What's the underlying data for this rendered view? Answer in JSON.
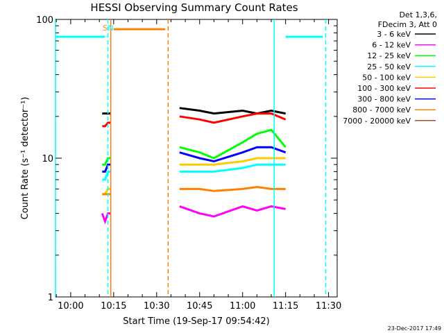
{
  "chart_data": {
    "type": "line",
    "title": "HESSI Observing Summary Count Rates",
    "xlabel": "Start Time (19-Sep-17 09:54:42)",
    "ylabel": "Count Rate (s⁻¹ detector⁻¹)",
    "x_scale": "time",
    "y_scale": "log",
    "xlim": [
      "09:54:42",
      "11:33:00"
    ],
    "ylim": [
      1,
      100
    ],
    "x_ticks": [
      "10:00",
      "10:15",
      "10:30",
      "10:45",
      "11:00",
      "11:15",
      "11:30"
    ],
    "y_ticks": [
      "1",
      "10",
      "100"
    ],
    "grid": false,
    "legend_placement": "top-right outside",
    "legend_header": [
      "Det 1,3,6,",
      "FDecim 3, Att 0"
    ],
    "series": [
      {
        "name": "3 - 6 keV",
        "color": "#000000",
        "segments": [
          {
            "x": [
              "10:11",
              "10:12",
              "10:13",
              "10:14"
            ],
            "y": [
              21,
              21,
              21,
              21
            ]
          },
          {
            "x": [
              "10:38",
              "10:45",
              "10:50",
              "11:00",
              "11:05",
              "11:10",
              "11:15"
            ],
            "y": [
              23,
              22,
              21,
              22,
              21,
              22,
              21
            ]
          }
        ]
      },
      {
        "name": "6 - 12 keV",
        "color": "#ff00ff",
        "segments": [
          {
            "x": [
              "10:11",
              "10:12",
              "10:13",
              "10:14"
            ],
            "y": [
              4,
              3.5,
              4,
              4
            ]
          },
          {
            "x": [
              "10:38",
              "10:45",
              "10:50",
              "11:00",
              "11:05",
              "11:10",
              "11:15"
            ],
            "y": [
              4.5,
              4,
              3.8,
              4.5,
              4.2,
              4.5,
              4.3
            ]
          }
        ]
      },
      {
        "name": "12 - 25 keV",
        "color": "#00ff00",
        "segments": [
          {
            "x": [
              "10:11",
              "10:12",
              "10:13",
              "10:14"
            ],
            "y": [
              9,
              9,
              10,
              10
            ]
          },
          {
            "x": [
              "10:38",
              "10:45",
              "10:50",
              "11:00",
              "11:05",
              "11:10",
              "11:15"
            ],
            "y": [
              12,
              11,
              10,
              13,
              15,
              16,
              12
            ]
          }
        ]
      },
      {
        "name": "25 - 50 keV",
        "color": "#00ffff",
        "segments": [
          {
            "x": [
              "10:11",
              "10:12",
              "10:13",
              "10:14"
            ],
            "y": [
              7,
              7,
              8,
              8
            ]
          },
          {
            "x": [
              "10:38",
              "10:45",
              "10:50",
              "11:00",
              "11:05",
              "11:10",
              "11:15"
            ],
            "y": [
              8,
              8,
              8,
              8.5,
              9,
              9,
              9
            ]
          }
        ]
      },
      {
        "name": "50 - 100 keV",
        "color": "#ffcc00",
        "segments": [
          {
            "x": [
              "10:11",
              "10:12",
              "10:13",
              "10:14"
            ],
            "y": [
              5.5,
              5.5,
              6,
              6
            ]
          },
          {
            "x": [
              "10:38",
              "10:45",
              "10:50",
              "11:00",
              "11:05",
              "11:10",
              "11:15"
            ],
            "y": [
              9,
              9,
              9,
              9.5,
              10,
              10,
              10
            ]
          }
        ]
      },
      {
        "name": "100 - 300 keV",
        "color": "#ff0000",
        "segments": [
          {
            "x": [
              "10:11",
              "10:12",
              "10:13",
              "10:14"
            ],
            "y": [
              17,
              17,
              18,
              18
            ]
          },
          {
            "x": [
              "10:38",
              "10:45",
              "10:50",
              "11:00",
              "11:05",
              "11:10",
              "11:15"
            ],
            "y": [
              20,
              19,
              18,
              20,
              21,
              21,
              19
            ]
          }
        ]
      },
      {
        "name": "300 - 800 keV",
        "color": "#0000ff",
        "segments": [
          {
            "x": [
              "10:11",
              "10:12",
              "10:13",
              "10:14"
            ],
            "y": [
              8,
              8,
              9,
              9
            ]
          },
          {
            "x": [
              "10:38",
              "10:45",
              "10:50",
              "11:00",
              "11:05",
              "11:10",
              "11:15"
            ],
            "y": [
              11,
              10,
              9.5,
              11,
              12,
              12,
              11
            ]
          }
        ]
      },
      {
        "name": "800 - 7000 keV",
        "color": "#ff8000",
        "segments": [
          {
            "x": [
              "10:11",
              "10:12",
              "10:13",
              "10:14"
            ],
            "y": [
              5.5,
              5.5,
              5.5,
              5.5
            ]
          },
          {
            "x": [
              "10:38",
              "10:45",
              "10:50",
              "11:00",
              "11:05",
              "11:10",
              "11:15"
            ],
            "y": [
              6,
              6,
              5.8,
              6,
              6.2,
              6,
              6
            ]
          }
        ]
      },
      {
        "name": "7000 - 20000 keV",
        "color": "#a0522d",
        "segments": []
      }
    ],
    "annotations": {
      "attenuator_bars": [
        {
          "x0": "09:54:42",
          "x1": "10:12",
          "y": 75,
          "color": "#00ffff"
        },
        {
          "x0": "11:15",
          "x1": "11:28",
          "y": 75,
          "color": "#00ffff"
        },
        {
          "x0": "10:15",
          "x1": "10:33",
          "y": 85,
          "color": "#ff8000"
        }
      ],
      "vlines": [
        {
          "x": "09:54:42",
          "color": "#00ffff",
          "style": "solid"
        },
        {
          "x": "10:13",
          "color": "#00ffff",
          "style": "dashed"
        },
        {
          "x": "10:14",
          "color": "#ff8000",
          "style": "solid"
        },
        {
          "x": "10:34",
          "color": "#ff8000",
          "style": "dashed"
        },
        {
          "x": "11:11",
          "color": "#00ffff",
          "style": "solid"
        },
        {
          "x": "11:29",
          "color": "#00ffff",
          "style": "dashed"
        }
      ],
      "markers": [
        {
          "text": "S",
          "x": "10:12",
          "color": "#ff8000"
        },
        {
          "text": "N",
          "x": "10:14",
          "color": "#00ffff"
        }
      ]
    }
  },
  "footer": {
    "date": "23-Dec-2017 17:49"
  }
}
